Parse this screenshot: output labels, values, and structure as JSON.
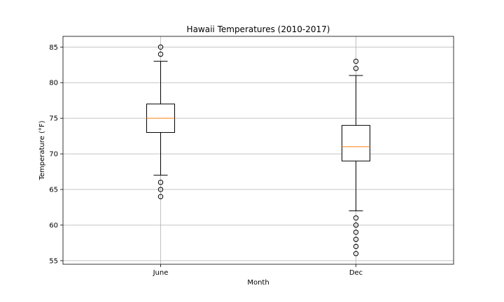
{
  "chart_data": {
    "type": "box",
    "title": "Hawaii Temperatures (2010-2017)",
    "xlabel": "Month",
    "ylabel": "Temperature (°F)",
    "ylim": [
      54.5,
      86.5
    ],
    "yticks": [
      55,
      60,
      65,
      70,
      75,
      80,
      85
    ],
    "grid": true,
    "categories": [
      "June",
      "Dec"
    ],
    "boxes": [
      {
        "category": "June",
        "whisker_low": 67,
        "q1": 73,
        "median": 75,
        "q3": 77,
        "whisker_high": 83,
        "outliers": [
          64,
          65,
          66,
          84,
          85
        ]
      },
      {
        "category": "Dec",
        "whisker_low": 62,
        "q1": 69,
        "median": 71,
        "q3": 74,
        "whisker_high": 81,
        "outliers": [
          56,
          57,
          58,
          59,
          60,
          61,
          82,
          83
        ]
      }
    ],
    "colors": {
      "box": "#000000",
      "median": "#ff7f0e",
      "grid": "#b0b0b0"
    }
  }
}
